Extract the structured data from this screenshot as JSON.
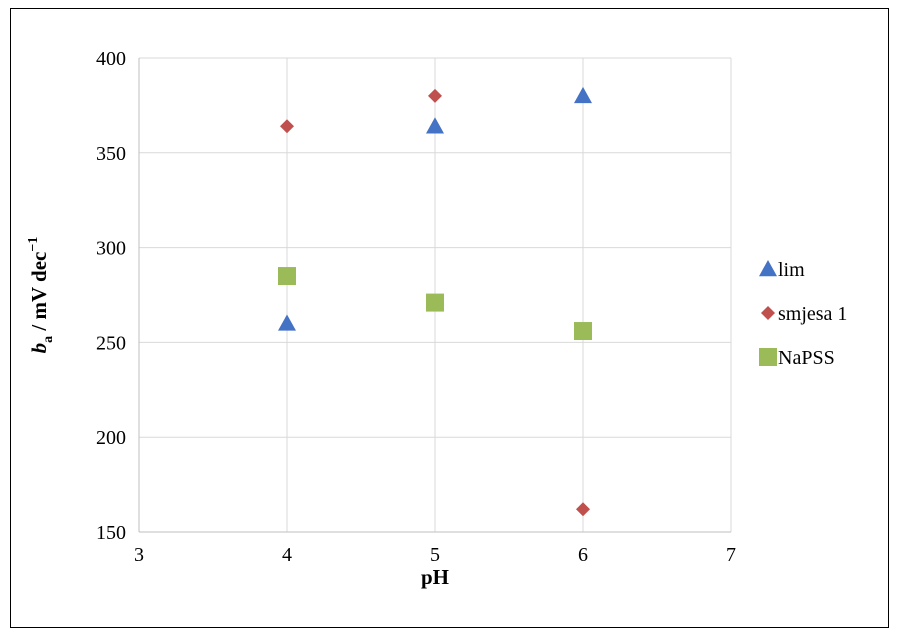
{
  "chart_data": {
    "type": "scatter",
    "title": "",
    "xlabel": "pH",
    "ylabel": {
      "italic_base": "b",
      "subscript": "a",
      "rest": " / mV dec",
      "superscript": "−1"
    },
    "xlim": [
      3,
      7
    ],
    "ylim": [
      150,
      400
    ],
    "xticks": [
      3,
      4,
      5,
      6,
      7
    ],
    "yticks": [
      150,
      200,
      250,
      300,
      350,
      400
    ],
    "grid": true,
    "legend_position": "right",
    "series": [
      {
        "name": "lim",
        "marker": "triangle",
        "color": "#4472C4",
        "x": [
          4,
          5,
          6
        ],
        "y": [
          260,
          364,
          380
        ]
      },
      {
        "name": "smjesa 1",
        "marker": "diamond",
        "color": "#C0504D",
        "x": [
          4,
          5,
          6
        ],
        "y": [
          364,
          380,
          162
        ]
      },
      {
        "name": "NaPSS",
        "marker": "square",
        "color": "#9BBB59",
        "x": [
          4,
          5,
          6
        ],
        "y": [
          285,
          271,
          256
        ]
      }
    ]
  }
}
